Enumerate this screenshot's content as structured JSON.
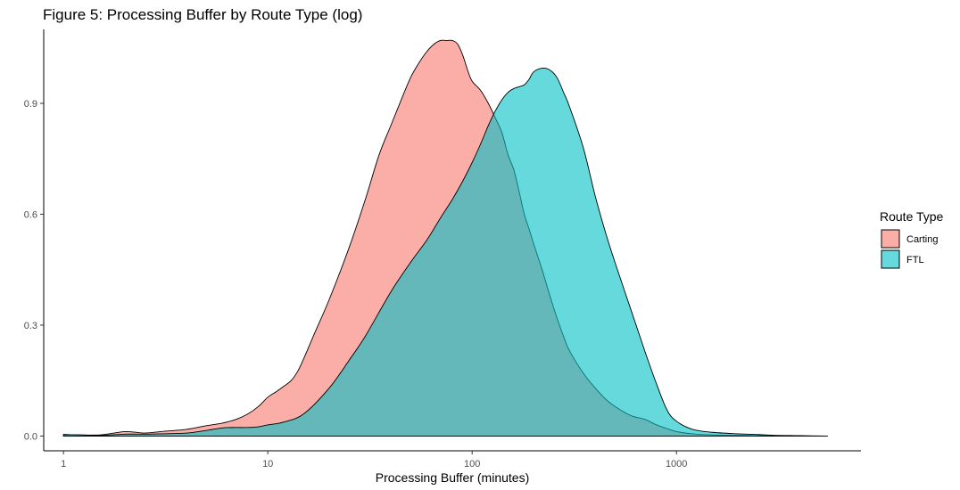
{
  "chart_data": {
    "type": "area",
    "subtype": "density",
    "title": "Figure 5: Processing Buffer by Route Type (log)",
    "xlabel": "Processing Buffer (minutes)",
    "ylabel": "",
    "xscale": "log10",
    "xlim": [
      0.8,
      8000
    ],
    "ylim": [
      -0.04,
      1.1
    ],
    "xticks": [
      1,
      10,
      100,
      1000
    ],
    "xtick_labels": [
      "1",
      "10",
      "100",
      "1000"
    ],
    "yticks": [
      0.0,
      0.3,
      0.6,
      0.9
    ],
    "ytick_labels": [
      "0.0",
      "0.3",
      "0.6",
      "0.9"
    ],
    "grid": false,
    "legend": {
      "title": "Route Type",
      "position": "right",
      "entries": [
        "Carting",
        "FTL"
      ]
    },
    "series": [
      {
        "name": "Carting",
        "color": "#F8766D",
        "opacity": 0.6,
        "x": [
          1,
          1.5,
          2,
          2.5,
          3,
          4,
          5,
          6,
          7,
          8,
          9,
          10,
          11,
          12,
          13,
          14,
          15,
          17,
          20,
          25,
          30,
          35,
          40,
          45,
          50,
          55,
          60,
          65,
          70,
          75,
          80,
          85,
          90,
          95,
          100,
          110,
          120,
          130,
          140,
          150,
          160,
          170,
          180,
          190,
          200,
          220,
          240,
          260,
          280,
          300,
          350,
          400,
          450,
          500,
          600,
          700,
          800,
          900,
          1000,
          1200,
          1500,
          2000,
          2500,
          3000,
          4000,
          5500
        ],
        "y": [
          0.004,
          0.003,
          0.012,
          0.008,
          0.012,
          0.018,
          0.028,
          0.035,
          0.045,
          0.06,
          0.08,
          0.105,
          0.12,
          0.135,
          0.15,
          0.175,
          0.21,
          0.28,
          0.37,
          0.51,
          0.64,
          0.76,
          0.84,
          0.91,
          0.97,
          1.01,
          1.04,
          1.06,
          1.07,
          1.07,
          1.07,
          1.06,
          1.03,
          0.99,
          0.96,
          0.935,
          0.9,
          0.86,
          0.82,
          0.76,
          0.72,
          0.66,
          0.6,
          0.56,
          0.52,
          0.45,
          0.38,
          0.32,
          0.27,
          0.23,
          0.17,
          0.13,
          0.1,
          0.08,
          0.055,
          0.045,
          0.03,
          0.02,
          0.012,
          0.006,
          0.003,
          0.002,
          0.001,
          0.001,
          0.0,
          0.0
        ]
      },
      {
        "name": "FTL",
        "color": "#00BFC4",
        "opacity": 0.6,
        "x": [
          1,
          1.5,
          2,
          2.5,
          3,
          4,
          5,
          6,
          7,
          8,
          9,
          10,
          12,
          15,
          20,
          25,
          30,
          40,
          50,
          60,
          70,
          80,
          90,
          100,
          110,
          120,
          130,
          140,
          150,
          160,
          170,
          180,
          190,
          200,
          220,
          240,
          260,
          280,
          300,
          350,
          400,
          450,
          500,
          600,
          700,
          800,
          900,
          1000,
          1200,
          1500,
          2000,
          2500,
          3000,
          4000,
          5500
        ],
        "y": [
          0.004,
          0.002,
          0.005,
          0.005,
          0.006,
          0.008,
          0.015,
          0.022,
          0.023,
          0.023,
          0.025,
          0.03,
          0.038,
          0.06,
          0.13,
          0.205,
          0.27,
          0.39,
          0.47,
          0.53,
          0.59,
          0.64,
          0.69,
          0.74,
          0.79,
          0.84,
          0.88,
          0.91,
          0.93,
          0.94,
          0.945,
          0.95,
          0.965,
          0.985,
          0.995,
          0.99,
          0.97,
          0.93,
          0.89,
          0.78,
          0.65,
          0.55,
          0.47,
          0.34,
          0.23,
          0.14,
          0.07,
          0.04,
          0.018,
          0.01,
          0.006,
          0.004,
          0.002,
          0.001,
          0.0
        ]
      }
    ]
  }
}
